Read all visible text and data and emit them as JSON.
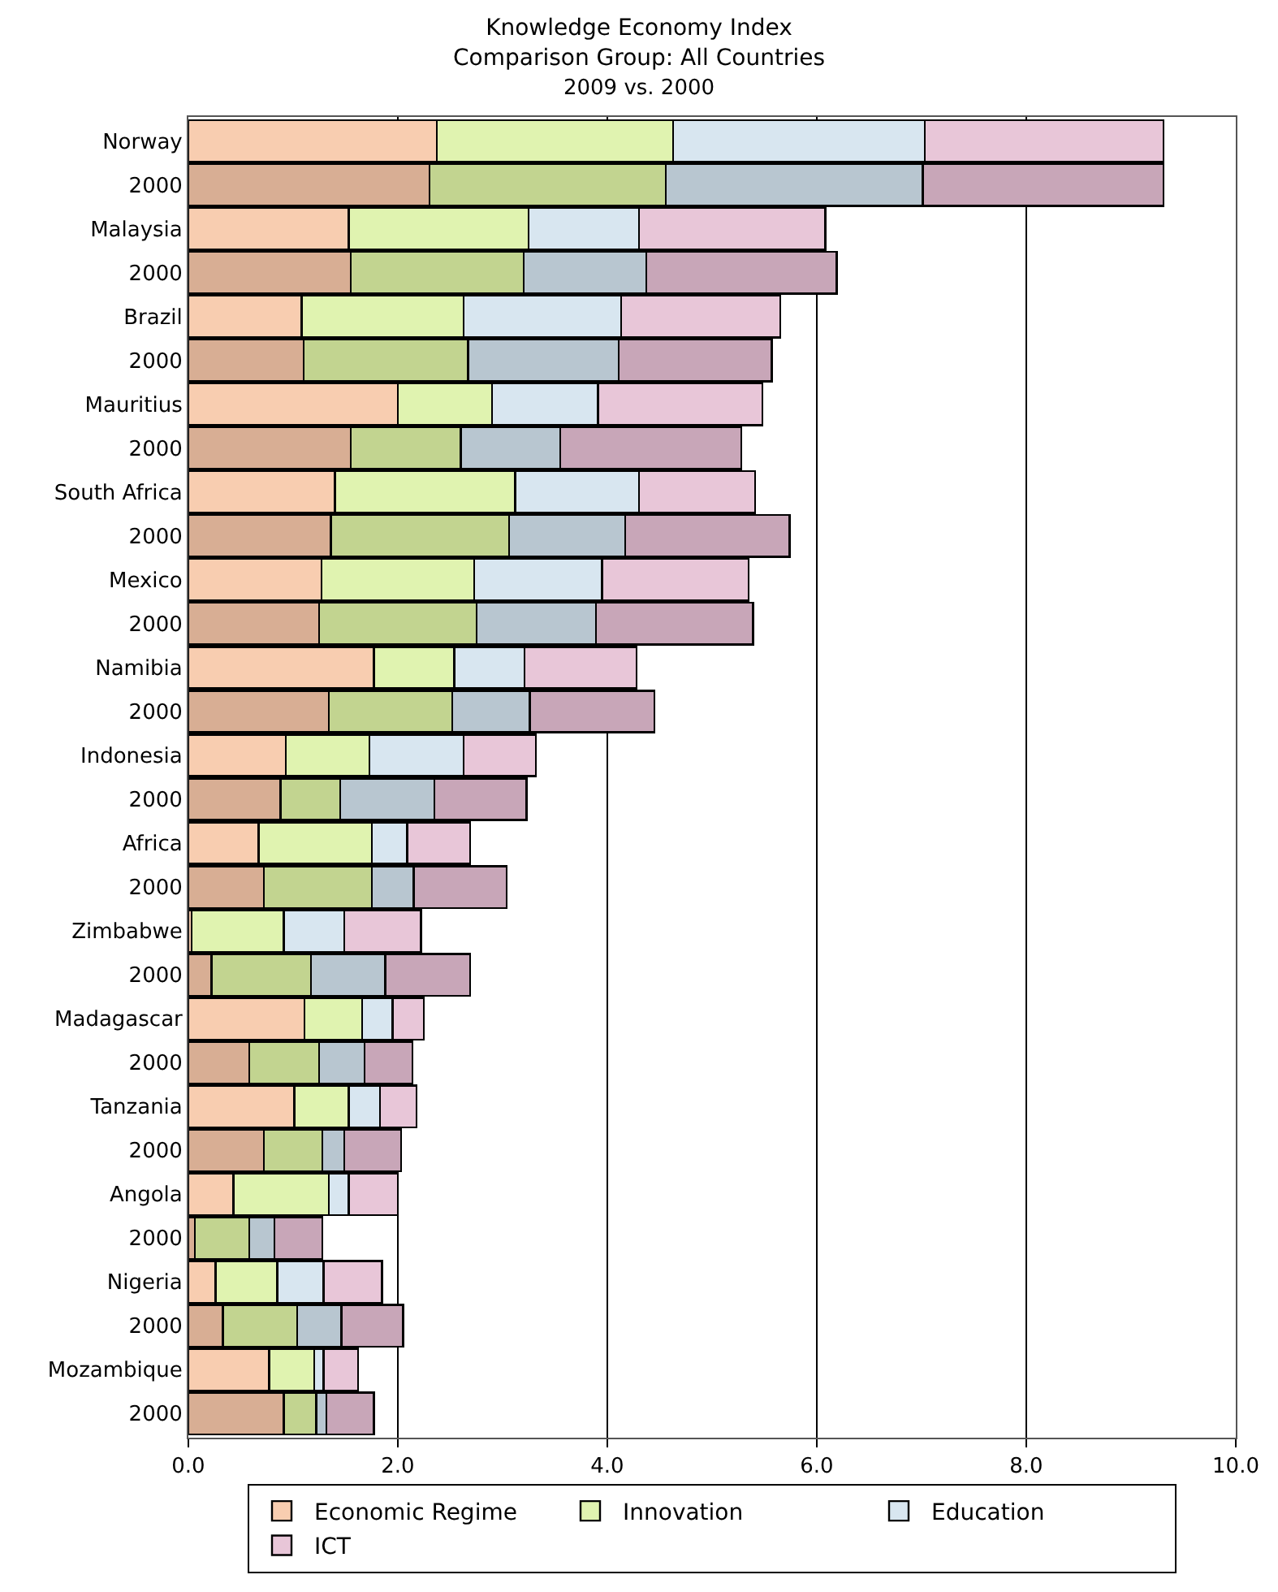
{
  "chart_data": {
    "type": "bar",
    "orientation": "horizontal",
    "stacked": true,
    "title": "Knowledge Economy Index\nComparison Group: All Countries",
    "subtitle": "2009 vs. 2000",
    "categories": [
      "Norway",
      "2000",
      "Malaysia",
      "2000",
      "Brazil",
      "2000",
      "Mauritius",
      "2000",
      "South Africa",
      "2000",
      "Mexico",
      "2000",
      "Namibia",
      "2000",
      "Indonesia",
      "2000",
      "Africa",
      "2000",
      "Zimbabwe",
      "2000",
      "Madagascar",
      "2000",
      "Tanzania",
      "2000",
      "Angola",
      "2000",
      "Nigeria",
      "2000",
      "Mozambique",
      "2000"
    ],
    "series": [
      {
        "name": "Economic Regime",
        "colors": [
          "#f8cdb0",
          "#d8ae94",
          "#f8cdb0",
          "#d8ae94",
          "#f8cdb0",
          "#d8ae94",
          "#f8cdb0",
          "#d8ae94",
          "#f8cdb0",
          "#d8ae94",
          "#f8cdb0",
          "#d8ae94",
          "#f8cdb0",
          "#d8ae94",
          "#f8cdb0",
          "#d8ae94",
          "#f8cdb0",
          "#d8ae94",
          "#f8cdb0",
          "#d8ae94",
          "#f8cdb0",
          "#d8ae94",
          "#f8cdb0",
          "#d8ae94",
          "#f8cdb0",
          "#d8ae94",
          "#f8cdb0",
          "#d8ae94",
          "#f8cdb0",
          "#d8ae94"
        ],
        "values": [
          2.37,
          2.3,
          1.53,
          1.55,
          1.08,
          1.1,
          2.0,
          1.55,
          1.4,
          1.36,
          1.27,
          1.25,
          1.77,
          1.34,
          0.93,
          0.88,
          0.67,
          0.72,
          0.03,
          0.22,
          1.11,
          0.58,
          1.01,
          0.72,
          0.43,
          0.06,
          0.26,
          0.33,
          0.77,
          0.91
        ]
      },
      {
        "name": "Innovation",
        "colors": [
          "#e0f3b0",
          "#c2d490",
          "#e0f3b0",
          "#c2d490",
          "#e0f3b0",
          "#c2d490",
          "#e0f3b0",
          "#c2d490",
          "#e0f3b0",
          "#c2d490",
          "#e0f3b0",
          "#c2d490",
          "#e0f3b0",
          "#c2d490",
          "#e0f3b0",
          "#c2d490",
          "#e0f3b0",
          "#c2d490",
          "#e0f3b0",
          "#c2d490",
          "#e0f3b0",
          "#c2d490",
          "#e0f3b0",
          "#c2d490",
          "#e0f3b0",
          "#c2d490",
          "#e0f3b0",
          "#c2d490",
          "#e0f3b0",
          "#c2d490"
        ],
        "values": [
          2.26,
          2.26,
          1.72,
          1.65,
          1.55,
          1.57,
          0.9,
          1.05,
          1.72,
          1.7,
          1.46,
          1.5,
          0.77,
          1.18,
          0.8,
          0.57,
          1.08,
          1.03,
          0.88,
          0.95,
          0.55,
          0.67,
          0.52,
          0.56,
          0.91,
          0.52,
          0.59,
          0.71,
          0.43,
          0.31
        ]
      },
      {
        "name": "Education",
        "colors": [
          "#d8e6f0",
          "#b8c6d0",
          "#d8e6f0",
          "#b8c6d0",
          "#d8e6f0",
          "#b8c6d0",
          "#d8e6f0",
          "#b8c6d0",
          "#d8e6f0",
          "#b8c6d0",
          "#d8e6f0",
          "#b8c6d0",
          "#d8e6f0",
          "#b8c6d0",
          "#d8e6f0",
          "#b8c6d0",
          "#d8e6f0",
          "#b8c6d0",
          "#d8e6f0",
          "#b8c6d0",
          "#d8e6f0",
          "#b8c6d0",
          "#d8e6f0",
          "#b8c6d0",
          "#d8e6f0",
          "#b8c6d0",
          "#d8e6f0",
          "#b8c6d0",
          "#d8e6f0",
          "#b8c6d0"
        ],
        "values": [
          2.4,
          2.45,
          1.05,
          1.17,
          1.5,
          1.44,
          1.01,
          0.95,
          1.18,
          1.11,
          1.22,
          1.14,
          0.67,
          0.74,
          0.9,
          0.9,
          0.34,
          0.4,
          0.58,
          0.71,
          0.29,
          0.43,
          0.3,
          0.21,
          0.19,
          0.24,
          0.44,
          0.42,
          0.09,
          0.1
        ]
      },
      {
        "name": "ICT",
        "colors": [
          "#e8c6d8",
          "#c8a6b8",
          "#e8c6d8",
          "#c8a6b8",
          "#e8c6d8",
          "#c8a6b8",
          "#e8c6d8",
          "#c8a6b8",
          "#e8c6d8",
          "#c8a6b8",
          "#e8c6d8",
          "#c8a6b8",
          "#e8c6d8",
          "#c8a6b8",
          "#e8c6d8",
          "#c8a6b8",
          "#e8c6d8",
          "#c8a6b8",
          "#e8c6d8",
          "#c8a6b8",
          "#e8c6d8",
          "#c8a6b8",
          "#e8c6d8",
          "#c8a6b8",
          "#e8c6d8",
          "#c8a6b8",
          "#e8c6d8",
          "#c8a6b8",
          "#e8c6d8",
          "#c8a6b8"
        ],
        "values": [
          2.28,
          2.3,
          1.78,
          1.82,
          1.52,
          1.46,
          1.57,
          1.73,
          1.11,
          1.57,
          1.4,
          1.5,
          1.07,
          1.19,
          0.69,
          0.88,
          0.6,
          0.89,
          0.73,
          0.81,
          0.3,
          0.46,
          0.35,
          0.54,
          0.47,
          0.46,
          0.56,
          0.59,
          0.33,
          0.45
        ]
      }
    ],
    "xlim": [
      0,
      10
    ],
    "xticks": [
      {
        "value": 0,
        "label": "0.0"
      },
      {
        "value": 2,
        "label": "2.0"
      },
      {
        "value": 4,
        "label": "4.0"
      },
      {
        "value": 6,
        "label": "6.0"
      },
      {
        "value": 8,
        "label": "8.0"
      },
      {
        "value": 10,
        "label": "10.0"
      }
    ],
    "grid": "x",
    "legend": "bottom"
  }
}
